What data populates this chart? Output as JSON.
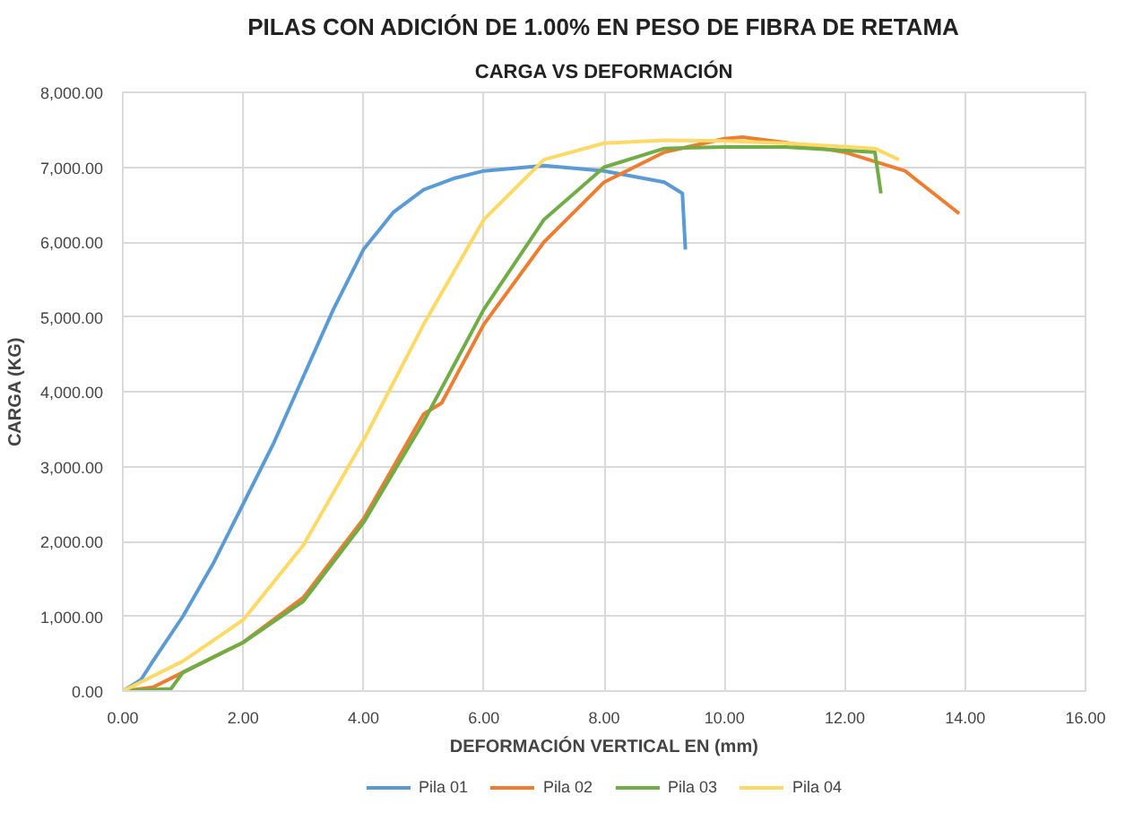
{
  "chart_data": {
    "type": "line",
    "title": "PILAS CON ADICIÓN DE 1.00% EN PESO DE FIBRA DE RETAMA",
    "subtitle": "CARGA VS DEFORMACIÓN",
    "xlabel": "DEFORMACIÓN VERTICAL EN (mm)",
    "ylabel": "CARGA (KG)",
    "xlim": [
      0,
      16
    ],
    "ylim": [
      0,
      8000
    ],
    "xticks": [
      {
        "value": 0,
        "label": "0.00"
      },
      {
        "value": 2,
        "label": "2.00"
      },
      {
        "value": 4,
        "label": "4.00"
      },
      {
        "value": 6,
        "label": "6.00"
      },
      {
        "value": 8,
        "label": "8.00"
      },
      {
        "value": 10,
        "label": "10.00"
      },
      {
        "value": 12,
        "label": "12.00"
      },
      {
        "value": 14,
        "label": "14.00"
      },
      {
        "value": 16,
        "label": "16.00"
      }
    ],
    "yticks": [
      {
        "value": 0,
        "label": "0.00"
      },
      {
        "value": 1000,
        "label": "1,000.00"
      },
      {
        "value": 2000,
        "label": "2,000.00"
      },
      {
        "value": 3000,
        "label": "3,000.00"
      },
      {
        "value": 4000,
        "label": "4,000.00"
      },
      {
        "value": 5000,
        "label": "5,000.00"
      },
      {
        "value": 6000,
        "label": "6,000.00"
      },
      {
        "value": 7000,
        "label": "7,000.00"
      },
      {
        "value": 8000,
        "label": "8,000.00"
      }
    ],
    "grid": true,
    "legend": "bottom",
    "marker": "none",
    "line_style": "solid",
    "series": [
      {
        "name": "Pila 01",
        "color": "#5b9bd5",
        "x": [
          0,
          0.3,
          0.5,
          1,
          1.5,
          2,
          2.5,
          3,
          3.5,
          4,
          4.5,
          5,
          5.5,
          6,
          7,
          8,
          9,
          9.3,
          9.35
        ],
        "values": [
          0,
          150,
          400,
          1000,
          1700,
          2500,
          3300,
          4200,
          5100,
          5900,
          6400,
          6700,
          6850,
          6950,
          7020,
          6950,
          6800,
          6650,
          5900
        ]
      },
      {
        "name": "Pila 02",
        "color": "#ed7d31",
        "x": [
          0,
          0.5,
          1,
          2,
          3,
          4,
          5,
          5.3,
          6,
          7,
          8,
          9,
          10,
          10.3,
          11,
          12,
          13,
          13.9
        ],
        "values": [
          0,
          50,
          250,
          650,
          1250,
          2300,
          3700,
          3850,
          4900,
          6000,
          6800,
          7200,
          7380,
          7400,
          7330,
          7200,
          6950,
          6380
        ]
      },
      {
        "name": "Pila 03",
        "color": "#70ad47",
        "x": [
          0,
          0.8,
          1,
          2,
          3,
          4,
          5,
          6,
          7,
          8,
          9,
          10,
          11,
          12.5,
          12.6
        ],
        "values": [
          0,
          30,
          250,
          650,
          1200,
          2250,
          3600,
          5100,
          6300,
          7000,
          7250,
          7270,
          7270,
          7200,
          6650
        ]
      },
      {
        "name": "Pila 04",
        "color": "#ffd966",
        "x": [
          0,
          1,
          2,
          3,
          4,
          5,
          6,
          7,
          8,
          9,
          10,
          11,
          12.5,
          12.9
        ],
        "values": [
          0,
          400,
          950,
          1950,
          3350,
          4900,
          6300,
          7100,
          7320,
          7360,
          7350,
          7320,
          7250,
          7100
        ]
      }
    ]
  }
}
